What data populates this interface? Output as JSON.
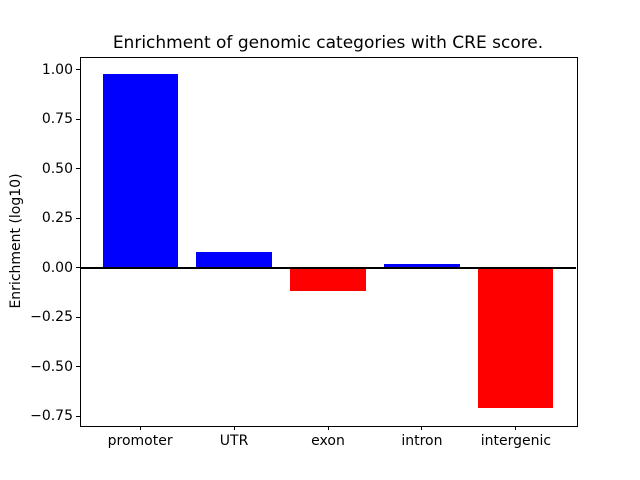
{
  "chart_data": {
    "type": "bar",
    "title": "Enrichment of genomic categories with CRE score.",
    "xlabel": "",
    "ylabel": "Enrichment (log10)",
    "categories": [
      "promoter",
      "UTR",
      "exon",
      "intron",
      "intergenic"
    ],
    "values": [
      0.98,
      0.08,
      -0.12,
      0.02,
      -0.71
    ],
    "bar_colors": [
      "#0000ff",
      "#0000ff",
      "#ff0000",
      "#0000ff",
      "#ff0000"
    ],
    "positive_color": "#0000ff",
    "negative_color": "#ff0000",
    "bar_width": 0.8,
    "yticks": [
      1.0,
      0.75,
      0.5,
      0.25,
      0.0,
      -0.25,
      -0.5,
      -0.75
    ],
    "ytick_labels": [
      "1.00",
      "0.75",
      "0.50",
      "0.25",
      "0.00",
      "−0.25",
      "−0.50",
      "−0.75"
    ],
    "ylim": [
      -0.7945,
      1.0645
    ],
    "xlim": [
      -0.64,
      4.64
    ],
    "zero_line": true,
    "grid": false,
    "legend": null,
    "axis_color": "#000000",
    "text_color": "#000000",
    "background_color": "#ffffff"
  }
}
